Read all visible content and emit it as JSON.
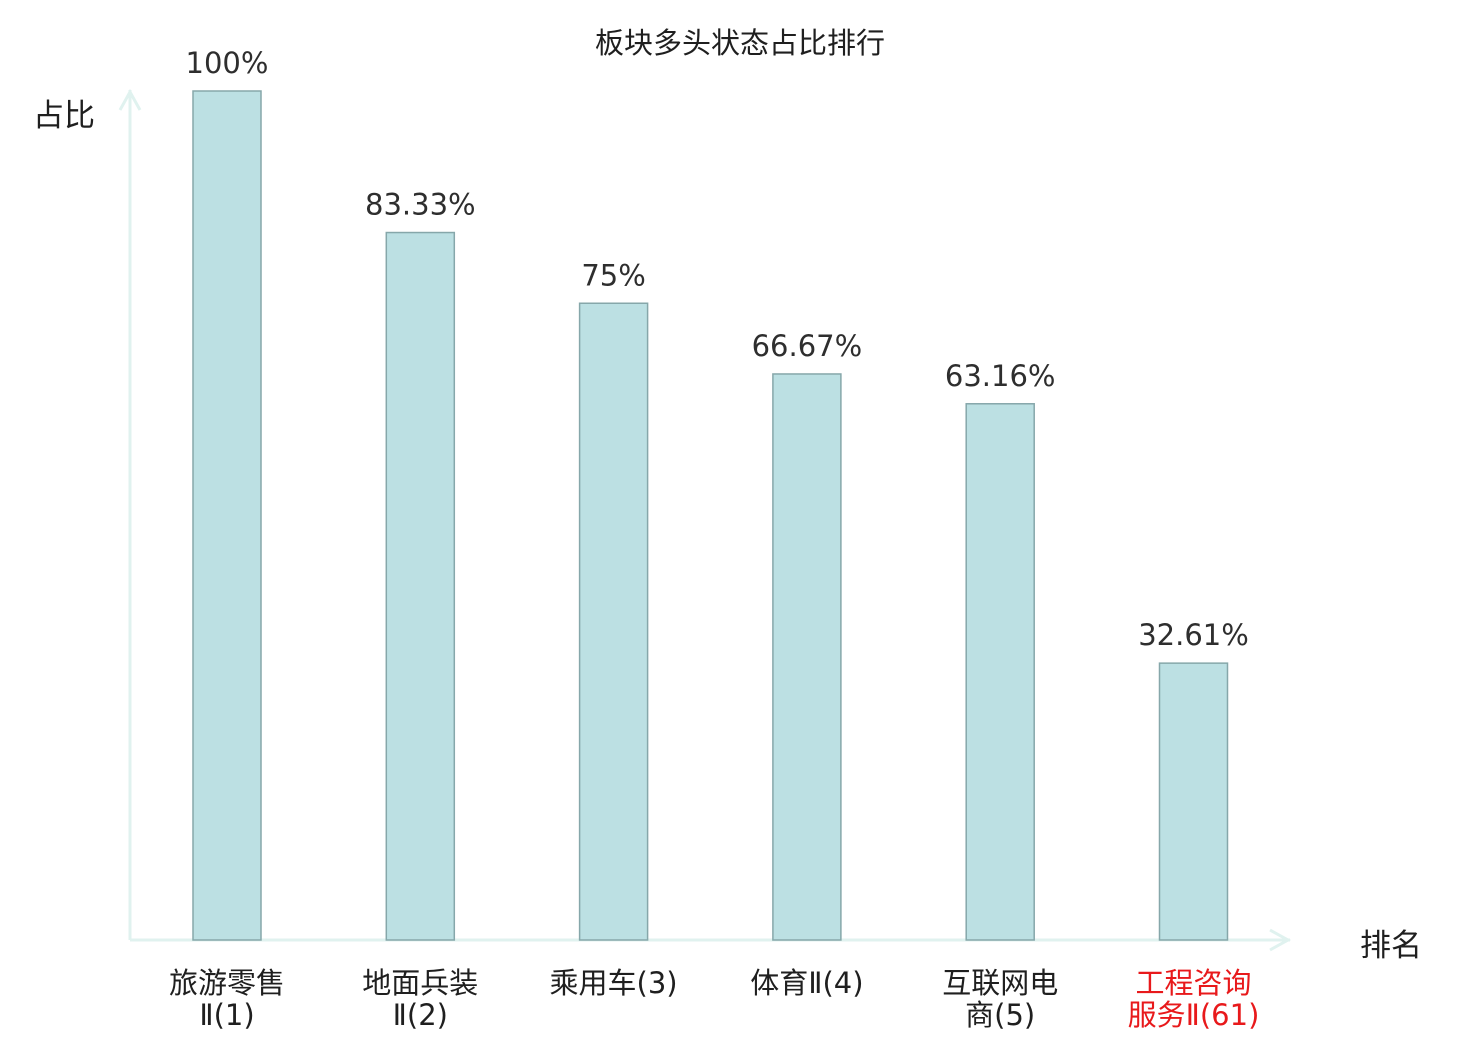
{
  "chart_data": {
    "type": "bar",
    "title": "板块多头状态占比排行",
    "xlabel": "排名",
    "ylabel": "占比",
    "ylim": [
      0,
      100
    ],
    "grid": false,
    "legend": "none",
    "categories": [
      [
        "旅游零售",
        "Ⅱ(1)"
      ],
      [
        "地面兵装",
        "Ⅱ(2)"
      ],
      [
        "乘用车(3)"
      ],
      [
        "体育Ⅱ(4)"
      ],
      [
        "互联网电",
        "商(5)"
      ],
      [
        "工程咨询",
        "服务Ⅱ(61)"
      ]
    ],
    "values": [
      100,
      83.33,
      75,
      66.67,
      63.16,
      32.61
    ],
    "value_labels": [
      "100%",
      "83.33%",
      "75%",
      "66.67%",
      "63.16%",
      "32.61%"
    ],
    "highlight_index": 5,
    "colors": {
      "bar_fill": "#bce0e3",
      "bar_stroke": "#86a7aa",
      "axis": "#e0f2ef",
      "text": "#2e2e2e",
      "highlight_text": "#e8191b"
    }
  }
}
